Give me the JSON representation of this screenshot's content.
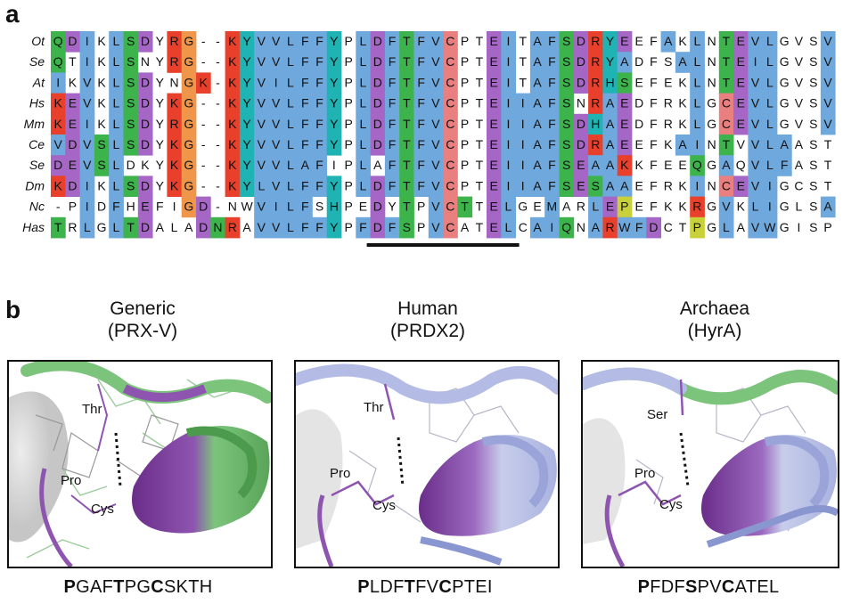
{
  "panel_a": {
    "letter": "a",
    "species": [
      "Ot",
      "Se",
      "At",
      "Hs",
      "Mm",
      "Ce",
      "Se",
      "Dm",
      "Nc",
      "Has"
    ],
    "sequences": [
      "QDIKLSDYRG--KYVVLFFYPLDFTFVCPTEITAFSDRYEEFAKLNTEVLGVSV",
      "QTIKLSNYRG--KYVVLFFYPLDFTFVCPTEITAFSDRYADFSALNTEILGVSV",
      "IKVKLSDYNGK-KYVILFFYPLDFTFVCPTEITAFSDRHSEFEKLNTEVLGVSV",
      "KEVKLSDYKG--KYVVLFFYPLDFTFVCPTEIIAFSNRAEDFRKLGCEVLGVSV",
      "KEIKLSDYRG--KYVVLFFYPLDFTFVCPTEIIAFSDHAEDFRKLGCEVLGVSV",
      "VDVSLSDYKG--KYVVLFFYPLDFTFVCPTEIIAFSDRAEEFKAINTVVLAAST",
      "DEVSLDKYKG--KYVVLAFIPLAFTFVCPTEIIAFSEAAKKFEEQGAQVLFAST",
      "KDIKLSDYKG--KYLVLFFYPLDFTFVCPTEIIAFSESAAEFRKINCEVIGCST",
      "-PIDFHEFIGD-NWVILFSHPEDYTPVCTTELGEMARLEPEFKKRGVKLIGLSA",
      "TRLGLTDALADNRAVVLFFYPFDFSPVCATELCAIQNARWFDCTPGLAVWGISP"
    ],
    "colors": {
      "blue": "#6fa8dc",
      "green": "#3cb44b",
      "orange": "#f0964a",
      "purple": "#a566c6",
      "red": "#e8402a",
      "salmon": "#e97f7f",
      "yellow": "#c8d13a",
      "cyan": "#1fb3b3"
    }
  },
  "panel_b": {
    "letter": "b",
    "panels": [
      {
        "title_line1": "Generic",
        "title_line2": "(PRX-V)",
        "labels": {
          "thr": "Thr",
          "pro": "Pro",
          "cys": "Cys"
        },
        "seq": [
          {
            "t": "P",
            "b": true
          },
          {
            "t": "GAF",
            "b": false
          },
          {
            "t": "T",
            "b": true
          },
          {
            "t": "PG",
            "b": false
          },
          {
            "t": "C",
            "b": true
          },
          {
            "t": "SKTH",
            "b": false
          }
        ],
        "ribbon_color": "#7cc47c"
      },
      {
        "title_line1": "Human",
        "title_line2": "(PRDX2)",
        "labels": {
          "thr": "Thr",
          "pro": "Pro",
          "cys": "Cys"
        },
        "seq": [
          {
            "t": "P",
            "b": true
          },
          {
            "t": "LDF",
            "b": false
          },
          {
            "t": "T",
            "b": true
          },
          {
            "t": "FV",
            "b": false
          },
          {
            "t": "C",
            "b": true
          },
          {
            "t": "PTEI",
            "b": false
          }
        ],
        "ribbon_color": "#b4bce6"
      },
      {
        "title_line1": "Archaea",
        "title_line2": "(HyrA)",
        "labels": {
          "thr": "Ser",
          "pro": "Pro",
          "cys": "Cys"
        },
        "seq": [
          {
            "t": "P",
            "b": true
          },
          {
            "t": "FDF",
            "b": false
          },
          {
            "t": "S",
            "b": true
          },
          {
            "t": "PV",
            "b": false
          },
          {
            "t": "C",
            "b": true
          },
          {
            "t": "ATEL",
            "b": false
          }
        ],
        "ribbon_color": "#b4bce6"
      }
    ]
  }
}
